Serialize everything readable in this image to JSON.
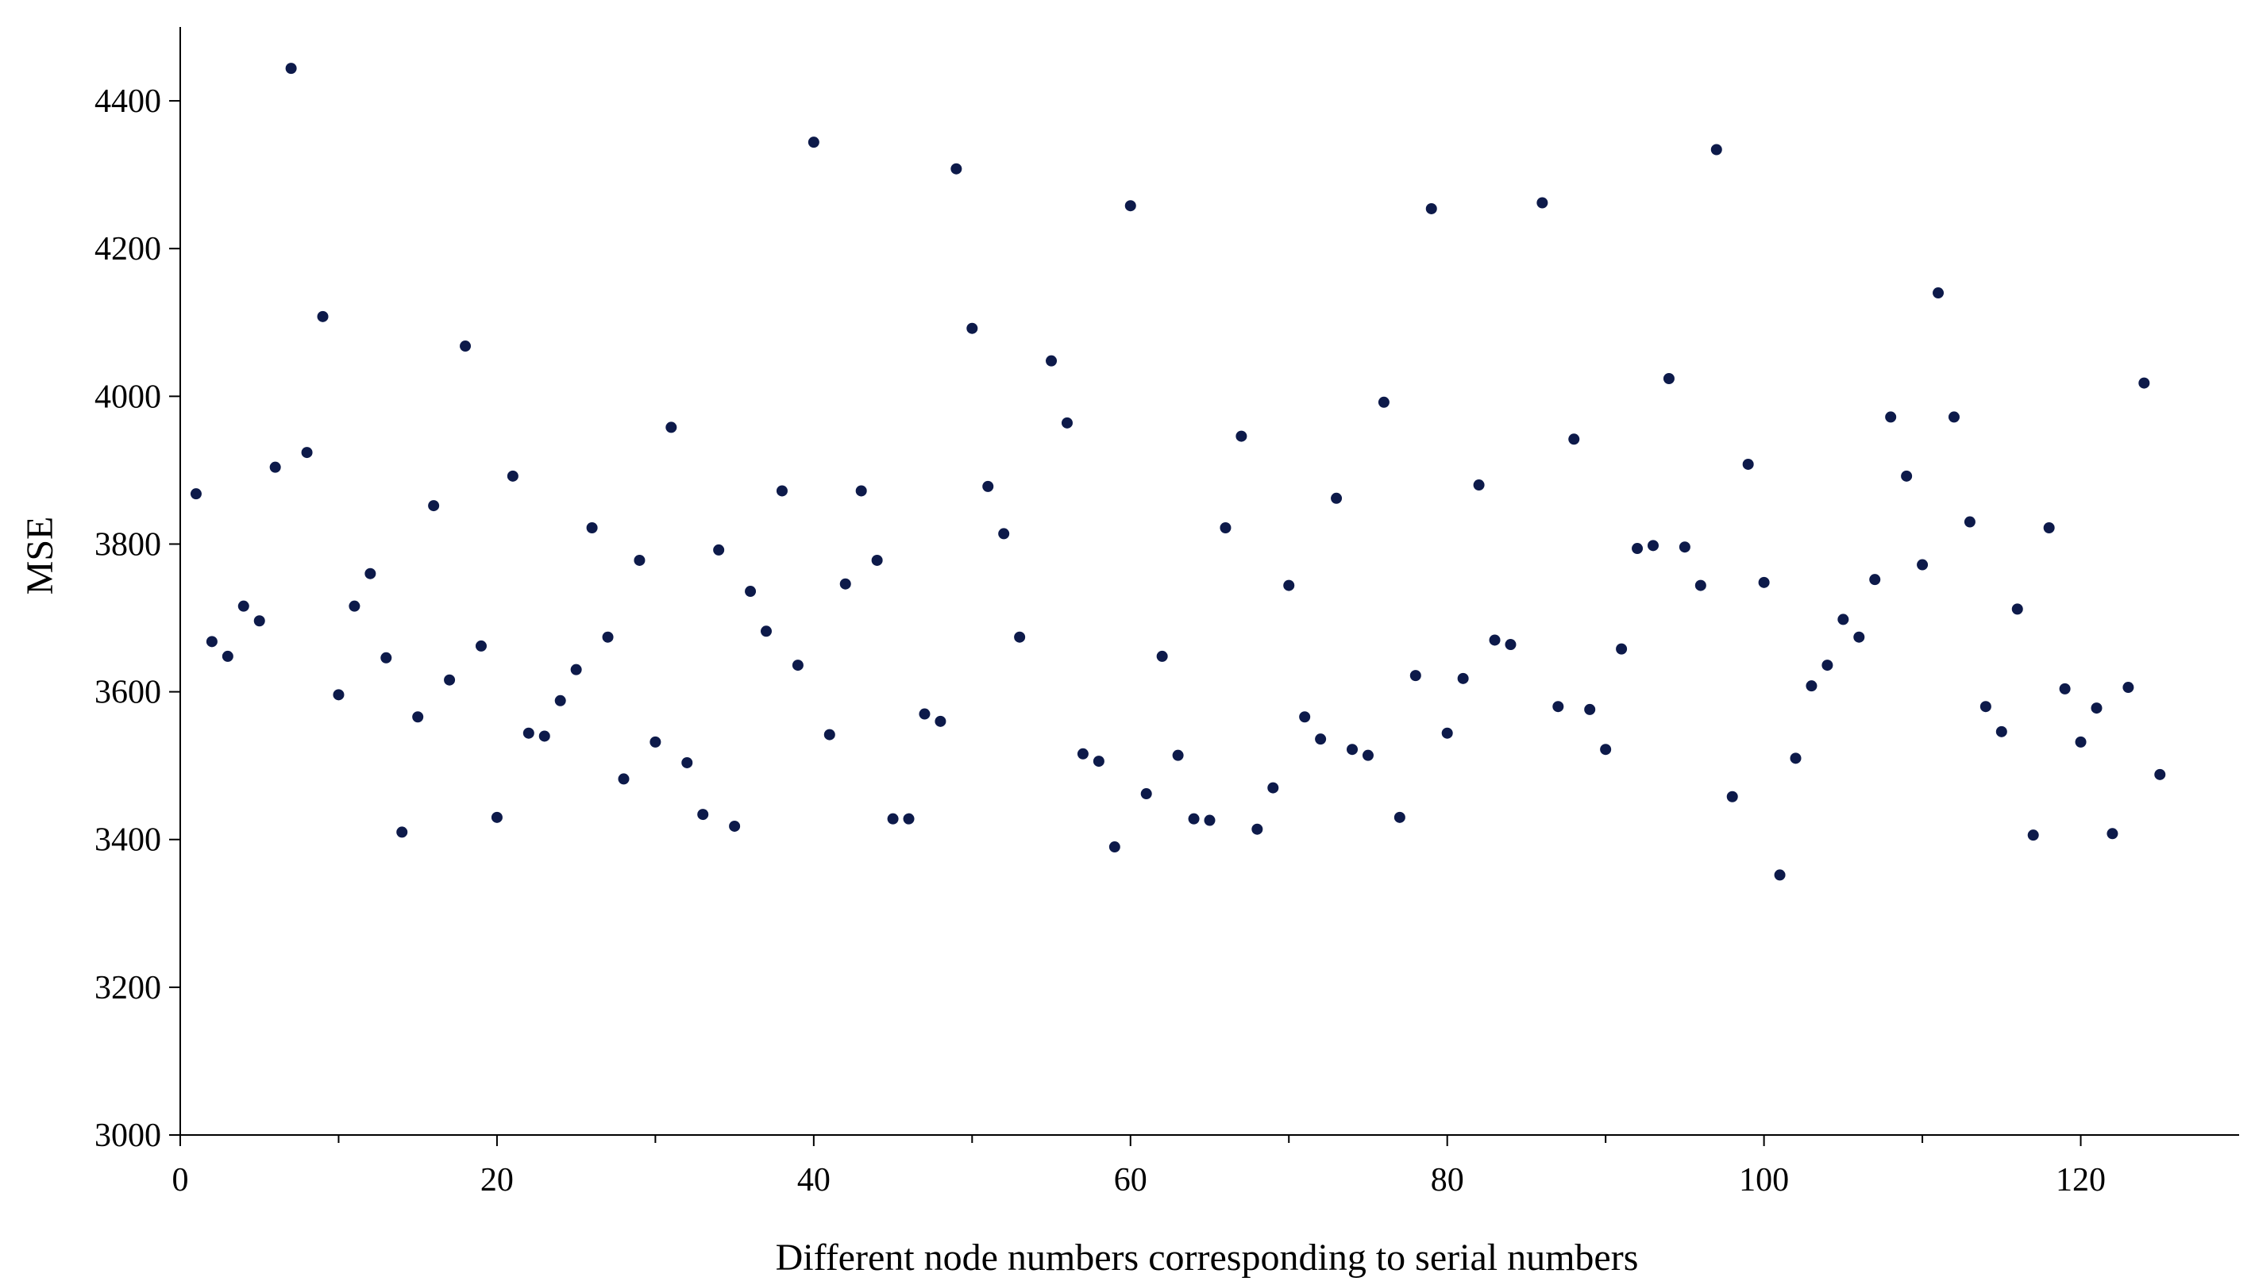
{
  "chart_data": {
    "type": "scatter",
    "title": "",
    "xlabel": "Different node numbers corresponding to serial numbers",
    "ylabel": "MSE",
    "xlim": [
      0,
      130
    ],
    "ylim": [
      3000,
      4500
    ],
    "xticks": [
      0,
      20,
      40,
      60,
      80,
      100,
      120
    ],
    "yticks": [
      3000,
      3200,
      3400,
      3600,
      3800,
      4000,
      4200,
      4400
    ],
    "grid": false,
    "legend": "none",
    "marker_color": "#0d1a4a",
    "series": [
      {
        "x": [
          1,
          2,
          3,
          4,
          5,
          6,
          7,
          8,
          9,
          10,
          11,
          12,
          13,
          14,
          15,
          16,
          17,
          18,
          19,
          20,
          21,
          22,
          23,
          24,
          25,
          26,
          27,
          28,
          29,
          30,
          31,
          32,
          33,
          34,
          35,
          36,
          37,
          38,
          39,
          40,
          41,
          42,
          43,
          44,
          45,
          46,
          47,
          48,
          49,
          50,
          51,
          52,
          53,
          54,
          55,
          56,
          57,
          58,
          59,
          60,
          61,
          62,
          63,
          64,
          65,
          66,
          67,
          68,
          69,
          70,
          71,
          72,
          73,
          74,
          75,
          76,
          77,
          78,
          79,
          80,
          81,
          82,
          83,
          84,
          85,
          86,
          87,
          88,
          89,
          90,
          91,
          92,
          93,
          94,
          95,
          96,
          97,
          98,
          99,
          100,
          101,
          102,
          103,
          104,
          105,
          106,
          107,
          108,
          109,
          110,
          111,
          112,
          113,
          114,
          115,
          116,
          117,
          118,
          119,
          120,
          121,
          122,
          123,
          124,
          125
        ],
        "y": [
          3868,
          3668,
          3648,
          3716,
          3696,
          3904,
          4444,
          3924,
          4108,
          3596,
          3716,
          3760,
          3646,
          3410,
          3566,
          3852,
          3616,
          4068,
          3662,
          3430,
          3892,
          3544,
          3540,
          3588,
          3630,
          3822,
          3674,
          3482,
          3778,
          3532,
          3958,
          3504,
          3434,
          3792,
          3418,
          3736,
          3682,
          3872,
          3636,
          4344,
          3542,
          3746,
          3872,
          3778,
          3428,
          3428,
          3570,
          3560,
          4308,
          4092,
          3878,
          3814,
          3674,
          null,
          4048,
          3964,
          3516,
          3506,
          3390,
          4258,
          3462,
          3648,
          3514,
          3428,
          3426,
          3822,
          3946,
          3414,
          3470,
          3744,
          3566,
          3536,
          3862,
          3522,
          3514,
          3992,
          3430,
          3622,
          4254,
          3544,
          3618,
          3880,
          3670,
          3664,
          null,
          4262,
          3580,
          3942,
          3576,
          3522,
          3658,
          3794,
          3798,
          4024,
          3796,
          3744,
          4334,
          3458,
          3908,
          3748,
          3352,
          3510,
          3608,
          3636,
          3698,
          3674,
          3752,
          3972,
          3892,
          3772,
          4140,
          3972,
          3830,
          3580,
          3546,
          3712,
          3406,
          3822,
          3604,
          3532,
          3578,
          3408,
          3606,
          4018,
          3488
        ]
      }
    ]
  }
}
